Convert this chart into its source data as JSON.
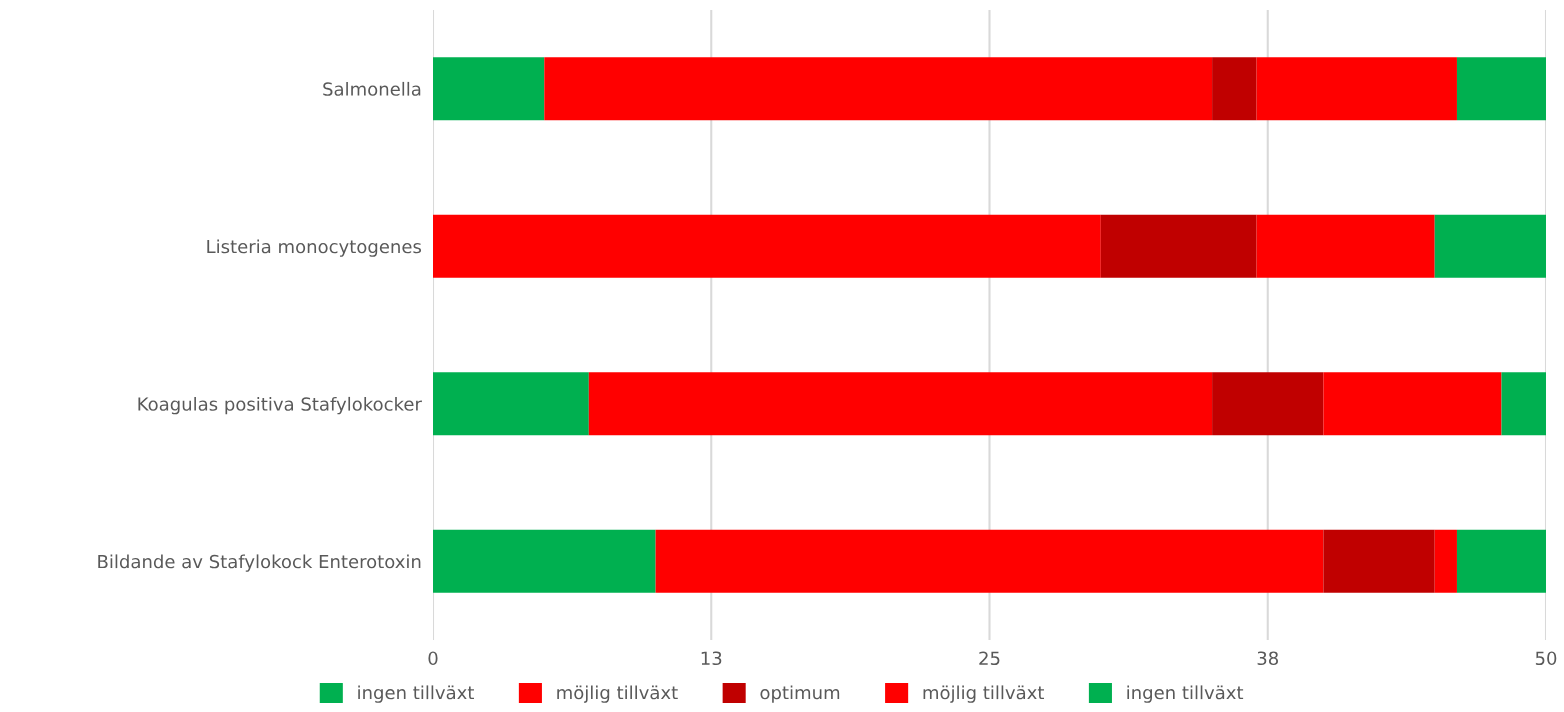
{
  "chart_data": {
    "type": "bar",
    "orientation": "horizontal",
    "stacked": true,
    "categories": [
      "Salmonella",
      "Listeria monocytogenes",
      "Koagulas positiva Stafylokocker",
      "Bildande av Stafylokock Enterotoxin"
    ],
    "series": [
      {
        "name": "ingen tillväxt",
        "color": "#00b050",
        "values": [
          5,
          0,
          7,
          10
        ]
      },
      {
        "name": "möjlig tillväxt",
        "color": "#ff0000",
        "values": [
          30,
          30,
          28,
          30
        ]
      },
      {
        "name": "optimum",
        "color": "#c00000",
        "values": [
          2,
          7,
          5,
          5
        ]
      },
      {
        "name": "möjlig tillväxt",
        "color": "#ff0000",
        "values": [
          9,
          8,
          8,
          1
        ]
      },
      {
        "name": "ingen tillväxt",
        "color": "#00b050",
        "values": [
          4,
          5,
          2,
          4
        ]
      }
    ],
    "xlim": [
      0,
      50
    ],
    "xticks": [
      0,
      {
        "value": 12.5,
        "label": "13"
      },
      25,
      {
        "value": 37.5,
        "label": "38"
      },
      50
    ],
    "grid": "x",
    "legend": "bottom"
  }
}
